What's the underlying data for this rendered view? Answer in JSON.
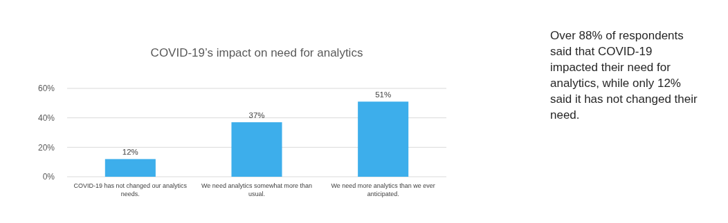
{
  "chart_data": {
    "type": "bar",
    "title": "COVID-19’s impact on need for analytics",
    "categories": [
      "COVID-19 has not changed our analytics needs.",
      "We need analytics somewhat more than usual.",
      "We need more analytics than we ever anticipated."
    ],
    "values": [
      12,
      37,
      51
    ],
    "color": "#3daeeb",
    "value_labels": [
      "12%",
      "37%",
      "51%"
    ],
    "ylim": [
      0,
      60
    ],
    "yticks": [
      {
        "value": 0,
        "label": "0%"
      },
      {
        "value": 20,
        "label": "20%"
      },
      {
        "value": 40,
        "label": "40%"
      },
      {
        "value": 60,
        "label": "60%"
      }
    ],
    "grid": "y",
    "annotations": [
      "Over 88% of respondents said that COVID-19 impacted their need for analytics, while only 12% said it has not changed their need."
    ]
  }
}
